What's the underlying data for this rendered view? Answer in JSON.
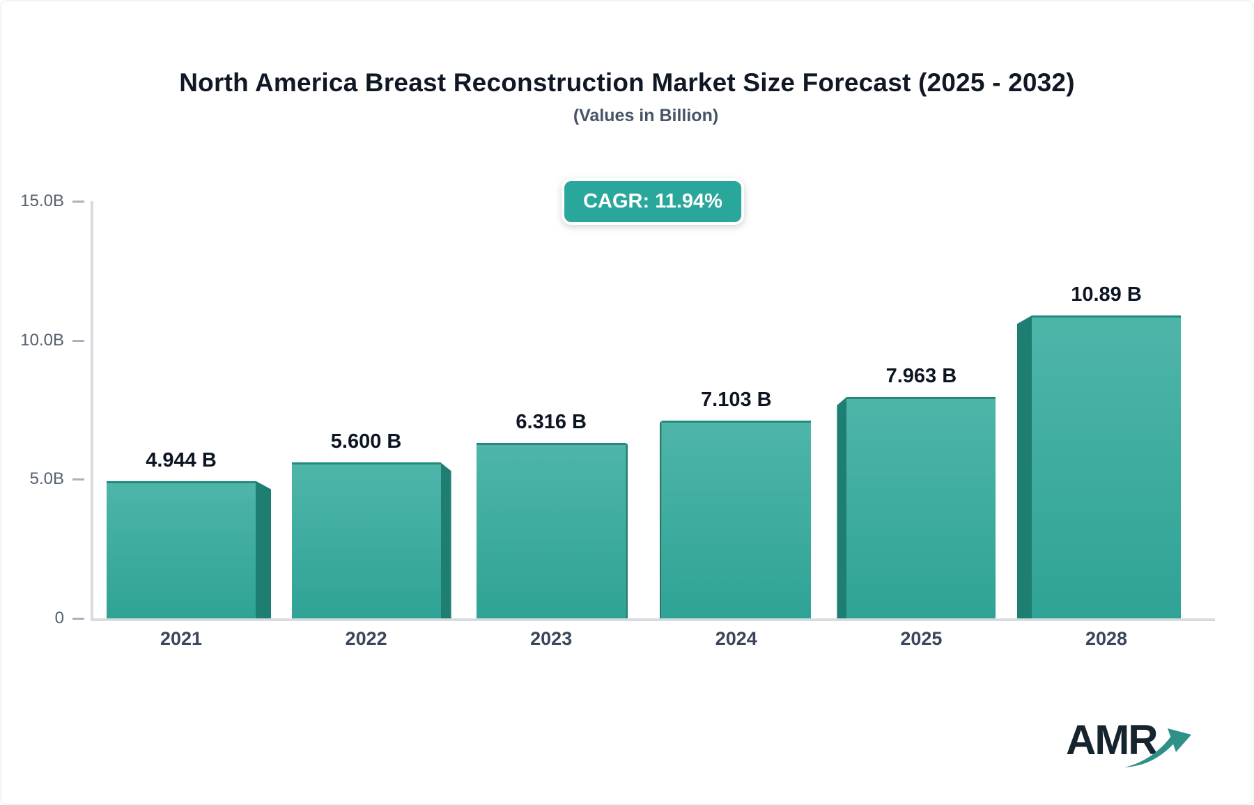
{
  "logo": {
    "text": "AMR",
    "arrow_icon": "growth-arrow-icon"
  },
  "colors": {
    "accent_teal": "#2aa79b",
    "badge_bg": "#2aa79b",
    "badge_text": "#ffffff",
    "bar_face_top": "#4eb5a9",
    "bar_face_bottom": "#2fa396",
    "bar_side": "#1f7e72",
    "bar_top_edge": "#23897d",
    "axis_line": "#d7dbe0",
    "title_text": "#101826",
    "subtitle_text": "#475467",
    "logo_text": "#15242d",
    "logo_arrow": "#2f9089"
  },
  "chart_data": {
    "type": "bar",
    "title": "North America Breast Reconstruction Market Size Forecast (2025 - 2032)",
    "subtitle": "(Values in Billion)",
    "cagr_label": "CAGR: 11.94%",
    "categories": [
      "2021",
      "2022",
      "2023",
      "2024",
      "2025",
      "2028"
    ],
    "values": [
      4.944,
      5.6,
      6.316,
      7.103,
      7.963,
      10.89
    ],
    "data_labels": [
      "4.944 B",
      "5.600 B",
      "6.316 B",
      "7.103 B",
      "7.963 B",
      "10.89 B"
    ],
    "xlabel": "",
    "ylabel": "",
    "ylim": [
      0,
      15
    ],
    "y_ticks": [
      {
        "value": 0,
        "label": "0"
      },
      {
        "value": 5,
        "label": "5.0B"
      },
      {
        "value": 10,
        "label": "10.0B"
      },
      {
        "value": 15,
        "label": "15.0B"
      }
    ],
    "grid": false,
    "legend": false,
    "bar_style": "3d-perspective"
  }
}
